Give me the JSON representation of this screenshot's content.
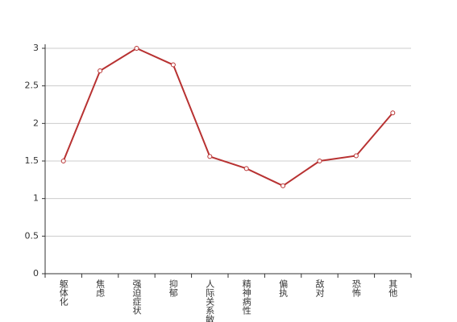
{
  "chart_data": {
    "type": "line",
    "categories": [
      "躯体化",
      "焦虑",
      "强迫症状",
      "抑郁",
      "人际关系敏感",
      "精神病性",
      "偏执",
      "敌对",
      "恐怖",
      "其他"
    ],
    "series": [
      {
        "color": "#b83232",
        "values": [
          1.5,
          2.7,
          3.0,
          2.78,
          1.56,
          1.4,
          1.17,
          1.5,
          1.57,
          2.14
        ]
      }
    ],
    "ylim": [
      0,
      3
    ],
    "yticks": [
      0,
      0.5,
      1,
      1.5,
      2,
      2.5,
      3
    ],
    "grid": true
  }
}
